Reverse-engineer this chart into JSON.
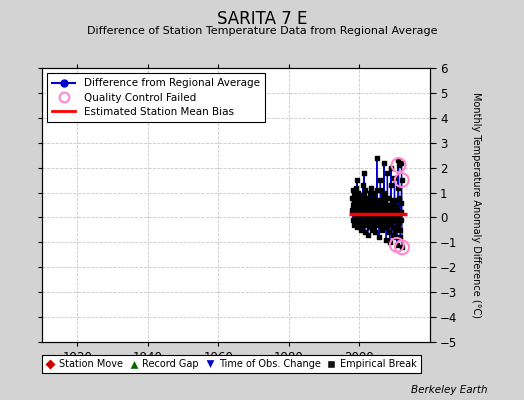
{
  "title": "SARITA 7 E",
  "subtitle": "Difference of Station Temperature Data from Regional Average",
  "ylabel_right": "Monthly Temperature Anomaly Difference (°C)",
  "footer": "Berkeley Earth",
  "xlim": [
    1910,
    2020
  ],
  "ylim": [
    -5,
    6
  ],
  "yticks": [
    -5,
    -4,
    -3,
    -2,
    -1,
    0,
    1,
    2,
    3,
    4,
    5,
    6
  ],
  "xticks": [
    1920,
    1940,
    1960,
    1980,
    2000
  ],
  "bg_color": "#d3d3d3",
  "plot_bg_color": "#ffffff",
  "grid_color": "#c8c8c8",
  "mean_bias": 0.15,
  "mean_bias_x_start": 1997.0,
  "mean_bias_x_end": 2013.5,
  "line_color": "#0000cc",
  "dot_color": "#000000",
  "bias_color": "#ff0000",
  "qc_fail_color": "#ff88cc",
  "data_points": [
    [
      1998.0,
      0.8
    ],
    [
      1998.08,
      0.3
    ],
    [
      1998.17,
      -0.1
    ],
    [
      1998.25,
      0.5
    ],
    [
      1998.33,
      1.1
    ],
    [
      1998.42,
      0.7
    ],
    [
      1998.5,
      0.2
    ],
    [
      1998.58,
      -0.3
    ],
    [
      1998.67,
      0.9
    ],
    [
      1998.75,
      0.4
    ],
    [
      1998.83,
      0.6
    ],
    [
      1998.92,
      1.0
    ],
    [
      1999.0,
      1.2
    ],
    [
      1999.08,
      0.6
    ],
    [
      1999.17,
      0.0
    ],
    [
      1999.25,
      -0.4
    ],
    [
      1999.33,
      0.8
    ],
    [
      1999.42,
      1.5
    ],
    [
      1999.5,
      0.3
    ],
    [
      1999.58,
      -0.2
    ],
    [
      1999.67,
      0.7
    ],
    [
      1999.75,
      1.0
    ],
    [
      1999.83,
      0.4
    ],
    [
      1999.92,
      0.9
    ],
    [
      2000.0,
      0.5
    ],
    [
      2000.08,
      -0.1
    ],
    [
      2000.17,
      0.3
    ],
    [
      2000.25,
      0.9
    ],
    [
      2000.33,
      0.2
    ],
    [
      2000.42,
      -0.5
    ],
    [
      2000.5,
      0.1
    ],
    [
      2000.58,
      0.6
    ],
    [
      2000.67,
      -0.3
    ],
    [
      2000.75,
      0.4
    ],
    [
      2000.83,
      0.7
    ],
    [
      2000.92,
      0.2
    ],
    [
      2001.0,
      1.3
    ],
    [
      2001.08,
      0.7
    ],
    [
      2001.17,
      -0.2
    ],
    [
      2001.25,
      0.5
    ],
    [
      2001.33,
      1.8
    ],
    [
      2001.42,
      0.9
    ],
    [
      2001.5,
      0.1
    ],
    [
      2001.58,
      -0.6
    ],
    [
      2001.67,
      0.4
    ],
    [
      2001.75,
      1.1
    ],
    [
      2001.83,
      0.5
    ],
    [
      2001.92,
      -0.1
    ],
    [
      2002.0,
      0.6
    ],
    [
      2002.08,
      -0.3
    ],
    [
      2002.17,
      0.2
    ],
    [
      2002.25,
      0.8
    ],
    [
      2002.33,
      0.0
    ],
    [
      2002.42,
      -0.7
    ],
    [
      2002.5,
      0.3
    ],
    [
      2002.58,
      0.7
    ],
    [
      2002.67,
      -0.4
    ],
    [
      2002.75,
      0.5
    ],
    [
      2002.83,
      0.2
    ],
    [
      2002.92,
      -0.2
    ],
    [
      2003.0,
      1.0
    ],
    [
      2003.08,
      0.4
    ],
    [
      2003.17,
      -0.1
    ],
    [
      2003.25,
      0.6
    ],
    [
      2003.33,
      1.2
    ],
    [
      2003.42,
      0.5
    ],
    [
      2003.5,
      -0.2
    ],
    [
      2003.58,
      0.1
    ],
    [
      2003.67,
      -0.5
    ],
    [
      2003.75,
      0.3
    ],
    [
      2003.83,
      0.7
    ],
    [
      2003.92,
      0.1
    ],
    [
      2004.0,
      0.8
    ],
    [
      2004.08,
      0.2
    ],
    [
      2004.17,
      -0.4
    ],
    [
      2004.25,
      0.5
    ],
    [
      2004.33,
      1.0
    ],
    [
      2004.42,
      0.3
    ],
    [
      2004.5,
      -0.6
    ],
    [
      2004.58,
      0.1
    ],
    [
      2004.67,
      -0.2
    ],
    [
      2004.75,
      0.4
    ],
    [
      2004.83,
      0.6
    ],
    [
      2004.92,
      0.0
    ],
    [
      2005.0,
      2.4
    ],
    [
      2005.08,
      1.1
    ],
    [
      2005.17,
      0.3
    ],
    [
      2005.25,
      -0.1
    ],
    [
      2005.33,
      0.7
    ],
    [
      2005.42,
      0.2
    ],
    [
      2005.5,
      -0.3
    ],
    [
      2005.58,
      0.5
    ],
    [
      2005.67,
      -0.8
    ],
    [
      2005.75,
      0.1
    ],
    [
      2005.83,
      0.4
    ],
    [
      2005.92,
      -0.2
    ],
    [
      2006.0,
      1.5
    ],
    [
      2006.08,
      0.6
    ],
    [
      2006.17,
      -0.1
    ],
    [
      2006.25,
      0.4
    ],
    [
      2006.33,
      1.1
    ],
    [
      2006.42,
      0.3
    ],
    [
      2006.5,
      -0.5
    ],
    [
      2006.58,
      0.2
    ],
    [
      2006.67,
      -0.3
    ],
    [
      2006.75,
      0.5
    ],
    [
      2006.83,
      0.8
    ],
    [
      2006.92,
      0.1
    ],
    [
      2007.0,
      2.2
    ],
    [
      2007.08,
      1.0
    ],
    [
      2007.17,
      0.2
    ],
    [
      2007.25,
      -0.2
    ],
    [
      2007.33,
      0.6
    ],
    [
      2007.42,
      -0.1
    ],
    [
      2007.5,
      -0.4
    ],
    [
      2007.58,
      0.3
    ],
    [
      2007.67,
      -0.9
    ],
    [
      2007.75,
      0.0
    ],
    [
      2007.83,
      0.5
    ],
    [
      2007.92,
      -0.1
    ],
    [
      2008.0,
      1.8
    ],
    [
      2008.08,
      0.8
    ],
    [
      2008.17,
      0.1
    ],
    [
      2008.25,
      -0.3
    ],
    [
      2008.33,
      0.5
    ],
    [
      2008.42,
      0.0
    ],
    [
      2008.5,
      -0.6
    ],
    [
      2008.58,
      0.2
    ],
    [
      2008.67,
      -1.0
    ],
    [
      2008.75,
      0.1
    ],
    [
      2008.83,
      0.4
    ],
    [
      2008.92,
      -0.2
    ],
    [
      2009.0,
      2.0
    ],
    [
      2009.08,
      1.3
    ],
    [
      2009.17,
      0.4
    ],
    [
      2009.25,
      -0.1
    ],
    [
      2009.33,
      0.7
    ],
    [
      2009.42,
      0.2
    ],
    [
      2009.5,
      -0.4
    ],
    [
      2009.58,
      0.3
    ],
    [
      2009.67,
      -0.7
    ],
    [
      2009.75,
      0.1
    ],
    [
      2009.83,
      0.5
    ],
    [
      2009.92,
      -0.1
    ],
    [
      2010.0,
      1.6
    ],
    [
      2010.08,
      0.7
    ],
    [
      2010.17,
      0.0
    ],
    [
      2010.25,
      -0.5
    ],
    [
      2010.33,
      0.4
    ],
    [
      2010.42,
      -0.1
    ],
    [
      2010.5,
      -0.8
    ],
    [
      2010.58,
      0.1
    ],
    [
      2010.67,
      -1.1
    ],
    [
      2010.75,
      0.0
    ],
    [
      2010.83,
      0.3
    ],
    [
      2010.92,
      -0.3
    ],
    [
      2011.0,
      2.3
    ],
    [
      2011.08,
      1.2
    ],
    [
      2011.17,
      2.1
    ],
    [
      2011.25,
      -0.2
    ],
    [
      2011.33,
      0.8
    ],
    [
      2011.42,
      0.1
    ],
    [
      2011.5,
      -0.5
    ],
    [
      2011.58,
      0.2
    ],
    [
      2011.67,
      -0.8
    ],
    [
      2011.75,
      0.2
    ],
    [
      2011.83,
      0.6
    ],
    [
      2011.92,
      -0.1
    ],
    [
      2012.0,
      2.2
    ],
    [
      2012.08,
      1.5
    ],
    [
      2012.17,
      -1.2
    ]
  ],
  "qc_fail_points": [
    [
      2011.17,
      2.1
    ],
    [
      2012.08,
      1.5
    ],
    [
      2010.67,
      -1.1
    ],
    [
      2012.17,
      -1.2
    ]
  ]
}
